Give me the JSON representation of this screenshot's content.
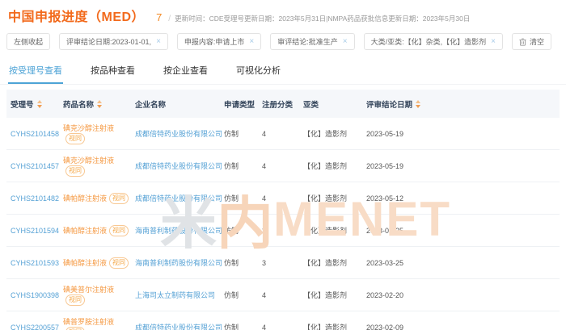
{
  "header": {
    "title": "中国申报进度（MED）",
    "count": "7",
    "divider": "/",
    "update_info": "更新时间：CDE受理号更新日期：2023年5月31日|NMPA药品获批信息更新日期：2023年5月30日"
  },
  "filters": {
    "collapse_label": "左侧收起",
    "clear_label": "清空",
    "chips": [
      {
        "label": "评审结论日期:2023-01-01,"
      },
      {
        "label": "申报内容:申请上市"
      },
      {
        "label": "审评结论:批准生产"
      },
      {
        "label": "大类/亚类:【化】杂类,【化】造影剂"
      }
    ]
  },
  "tabs": [
    {
      "label": "按受理号查看",
      "active": true
    },
    {
      "label": "按品种查看",
      "active": false
    },
    {
      "label": "按企业查看",
      "active": false
    },
    {
      "label": "可视化分析",
      "active": false
    }
  ],
  "table": {
    "columns": [
      {
        "label": "受理号",
        "sortable": true
      },
      {
        "label": "药品名称",
        "sortable": true
      },
      {
        "label": "企业名称",
        "sortable": false
      },
      {
        "label": "申请类型",
        "sortable": false
      },
      {
        "label": "注册分类",
        "sortable": false
      },
      {
        "label": "亚类",
        "sortable": false
      },
      {
        "label": "评审结论日期",
        "sortable": true
      }
    ],
    "rows": [
      {
        "acceptance_no": "CYHS2101458",
        "drug_name": "碘克沙醇注射液",
        "badge": "视同",
        "company": "成都倍特药业股份有限公司",
        "apply_type": "仿制",
        "reg_class": "4",
        "subclass": "【化】造影剂",
        "date": "2023-05-19"
      },
      {
        "acceptance_no": "CYHS2101457",
        "drug_name": "碘克沙醇注射液",
        "badge": "视同",
        "company": "成都倍特药业股份有限公司",
        "apply_type": "仿制",
        "reg_class": "4",
        "subclass": "【化】造影剂",
        "date": "2023-05-19"
      },
      {
        "acceptance_no": "CYHS2101482",
        "drug_name": "碘帕醇注射液",
        "badge": "视同",
        "company": "成都倍特药业股份有限公司",
        "apply_type": "仿制",
        "reg_class": "4",
        "subclass": "【化】造影剂",
        "date": "2023-05-12"
      },
      {
        "acceptance_no": "CYHS2101594",
        "drug_name": "碘帕醇注射液",
        "badge": "视同",
        "company": "海南普利制药股份有限公司",
        "apply_type": "仿制",
        "reg_class": "3",
        "subclass": "【化】造影剂",
        "date": "2023-03-25"
      },
      {
        "acceptance_no": "CYHS2101593",
        "drug_name": "碘帕醇注射液",
        "badge": "视同",
        "company": "海南普利制药股份有限公司",
        "apply_type": "仿制",
        "reg_class": "3",
        "subclass": "【化】造影剂",
        "date": "2023-03-25"
      },
      {
        "acceptance_no": "CYHS1900398",
        "drug_name": "碘美普尔注射液",
        "badge": "视同",
        "company": "上海司太立制药有限公司",
        "apply_type": "仿制",
        "reg_class": "4",
        "subclass": "【化】造影剂",
        "date": "2023-02-20"
      },
      {
        "acceptance_no": "CYHS2200557",
        "drug_name": "碘普罗胺注射液",
        "badge": "视同",
        "company": "成都倍特药业股份有限公司",
        "apply_type": "仿制",
        "reg_class": "4",
        "subclass": "【化】造影剂",
        "date": "2023-02-09"
      }
    ]
  },
  "watermark": {
    "char1": "米",
    "char2": "内",
    "latin": "MENET"
  },
  "colors": {
    "accent_orange": "#f26a1c",
    "link_blue": "#55a1d5",
    "tab_active": "#4da3d6",
    "badge_orange": "#f5a94b"
  }
}
